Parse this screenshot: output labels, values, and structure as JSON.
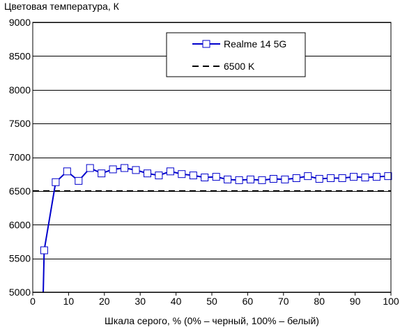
{
  "chart_data": {
    "type": "line",
    "ylabel": "Цветовая температура, К",
    "xlabel": "Шкала серого, % (0% – черный, 100% – белый)",
    "xlim": [
      0,
      100
    ],
    "ylim": [
      5000,
      9000
    ],
    "xticks": [
      "0",
      "10",
      "20",
      "30",
      "40",
      "50",
      "60",
      "70",
      "80",
      "90",
      "100"
    ],
    "yticks": [
      "5000",
      "5500",
      "6000",
      "6500",
      "7000",
      "7500",
      "8000",
      "8500",
      "9000"
    ],
    "grid": "horizontal",
    "legend_position": "top-right",
    "series": [
      {
        "name": "Realme 14 5G",
        "color": "#0000cc",
        "marker": "open-square",
        "x": [
          3.2,
          6.4,
          9.6,
          12.8,
          16.0,
          19.2,
          22.4,
          25.6,
          28.8,
          32.0,
          35.2,
          38.4,
          41.6,
          44.8,
          48.0,
          51.2,
          54.4,
          57.6,
          60.8,
          64.0,
          67.2,
          70.4,
          73.6,
          76.8,
          80.0,
          83.2,
          86.4,
          89.6,
          92.8,
          96.0,
          99.2
        ],
        "y": [
          5620,
          6630,
          6790,
          6650,
          6840,
          6760,
          6820,
          6840,
          6810,
          6760,
          6730,
          6790,
          6750,
          6730,
          6700,
          6710,
          6670,
          6660,
          6670,
          6660,
          6680,
          6670,
          6690,
          6720,
          6680,
          6690,
          6690,
          6710,
          6700,
          6710,
          6720
        ]
      },
      {
        "name": "6500 K",
        "color": "#000000",
        "style": "dashed",
        "x": [
          0,
          100
        ],
        "y": [
          6500,
          6500
        ]
      }
    ]
  }
}
